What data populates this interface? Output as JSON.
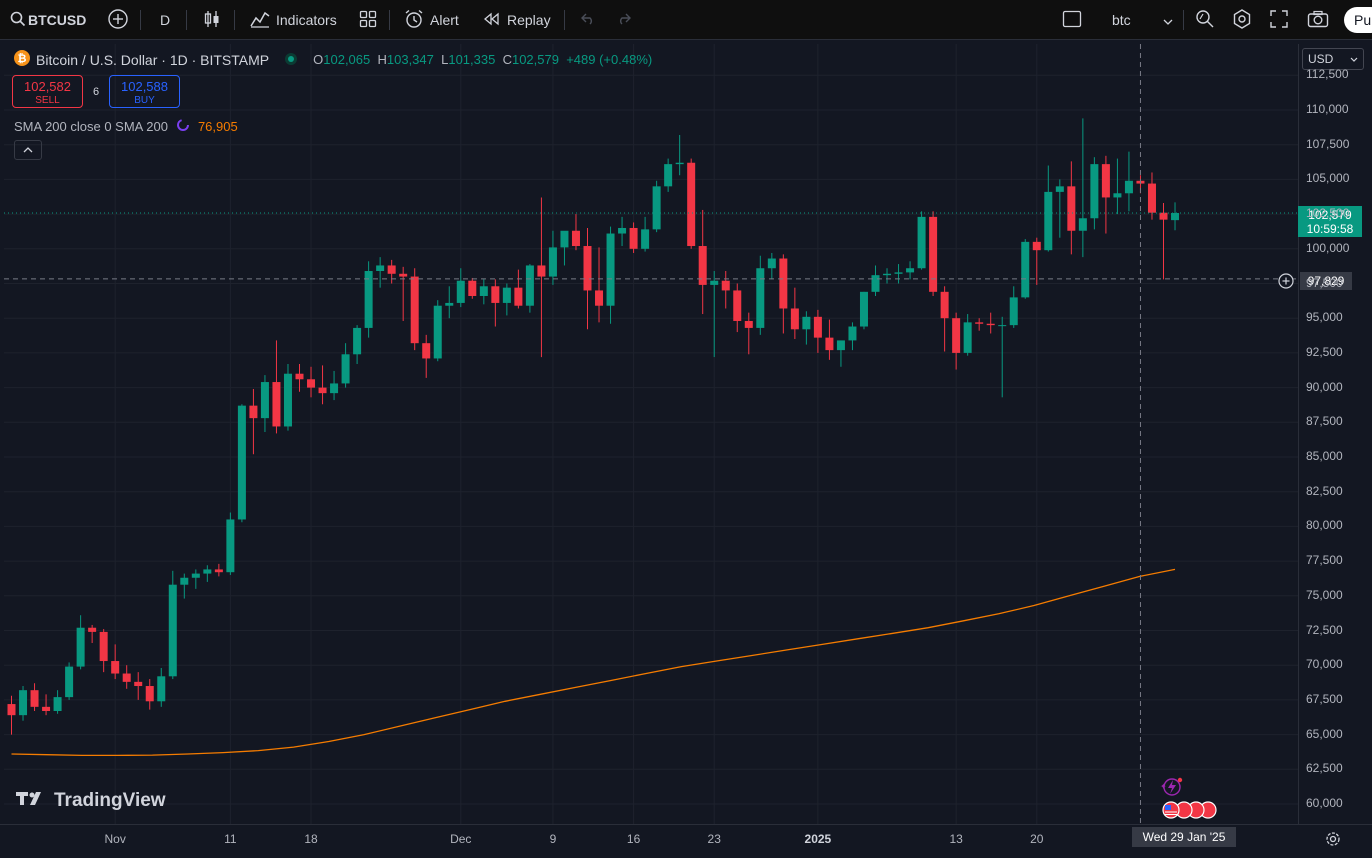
{
  "toolbar": {
    "symbol": "BTCUSD",
    "interval": "D",
    "indicators_label": "Indicators",
    "alert_label": "Alert",
    "replay_label": "Replay",
    "layout_name": "btc",
    "publish_label": "Pu"
  },
  "legend": {
    "title": "Bitcoin / U.S. Dollar · 1D · BITSTAMP",
    "o_key": "O",
    "o_val": "102,065",
    "h_key": "H",
    "h_val": "103,347",
    "l_key": "L",
    "l_val": "101,335",
    "c_key": "C",
    "c_val": "102,579",
    "change": "+489 (+0.48%)"
  },
  "trade": {
    "sell_price": "102,582",
    "sell_label": "SELL",
    "spread": "6",
    "buy_price": "102,588",
    "buy_label": "BUY"
  },
  "sma": {
    "label": "SMA 200 close 0 SMA 200",
    "value": "76,905"
  },
  "currency": "USD",
  "last_price_tag": {
    "price": "102,579",
    "countdown": "10:59:58"
  },
  "crosshair": {
    "price": "97,829",
    "date": "Wed 29 Jan '25"
  },
  "brand": "TradingView",
  "colors": {
    "up": "#089981",
    "down": "#f23645",
    "sma": "#f57c00",
    "bg": "#131722"
  },
  "chart_data": {
    "type": "candlestick",
    "ylim": [
      59000,
      113000
    ],
    "price_ticks": [
      "112,500",
      "110,000",
      "107,500",
      "105,000",
      "102,500",
      "100,000",
      "97,500",
      "95,000",
      "92,500",
      "90,000",
      "87,500",
      "85,000",
      "82,500",
      "80,000",
      "77,500",
      "75,000",
      "72,500",
      "70,000",
      "67,500",
      "65,000",
      "62,500",
      "60,000"
    ],
    "time_ticks": [
      {
        "label": "Nov",
        "date": "2024-11-01"
      },
      {
        "label": "11",
        "date": "2024-11-11"
      },
      {
        "label": "18",
        "date": "2024-11-18"
      },
      {
        "label": "Dec",
        "date": "2024-12-01"
      },
      {
        "label": "9",
        "date": "2024-12-09"
      },
      {
        "label": "16",
        "date": "2024-12-16"
      },
      {
        "label": "23",
        "date": "2024-12-23"
      },
      {
        "label": "2025",
        "date": "2025-01-01"
      },
      {
        "label": "13",
        "date": "2025-01-13"
      },
      {
        "label": "20",
        "date": "2025-01-20"
      }
    ],
    "candles": [
      {
        "o": 67200,
        "h": 67800,
        "l": 65000,
        "c": 66400
      },
      {
        "o": 66400,
        "h": 68500,
        "l": 66000,
        "c": 68200
      },
      {
        "o": 68200,
        "h": 68700,
        "l": 66700,
        "c": 67000
      },
      {
        "o": 67000,
        "h": 67900,
        "l": 66400,
        "c": 66700
      },
      {
        "o": 66700,
        "h": 68200,
        "l": 66500,
        "c": 67700
      },
      {
        "o": 67700,
        "h": 70200,
        "l": 67500,
        "c": 69900
      },
      {
        "o": 69900,
        "h": 73600,
        "l": 69700,
        "c": 72700
      },
      {
        "o": 72700,
        "h": 72900,
        "l": 71600,
        "c": 72400
      },
      {
        "o": 72400,
        "h": 72600,
        "l": 69500,
        "c": 70300
      },
      {
        "o": 70300,
        "h": 71500,
        "l": 69000,
        "c": 69400
      },
      {
        "o": 69400,
        "h": 70000,
        "l": 68300,
        "c": 68800
      },
      {
        "o": 68800,
        "h": 69500,
        "l": 67500,
        "c": 68500
      },
      {
        "o": 68500,
        "h": 69000,
        "l": 66800,
        "c": 67400
      },
      {
        "o": 67400,
        "h": 69800,
        "l": 67000,
        "c": 69200
      },
      {
        "o": 69200,
        "h": 76800,
        "l": 69000,
        "c": 75800
      },
      {
        "o": 75800,
        "h": 76600,
        "l": 74800,
        "c": 76300
      },
      {
        "o": 76300,
        "h": 76900,
        "l": 75500,
        "c": 76600
      },
      {
        "o": 76600,
        "h": 77200,
        "l": 76000,
        "c": 76900
      },
      {
        "o": 76900,
        "h": 77300,
        "l": 76400,
        "c": 76700
      },
      {
        "o": 76700,
        "h": 81000,
        "l": 76500,
        "c": 80500
      },
      {
        "o": 80500,
        "h": 88800,
        "l": 80300,
        "c": 88700
      },
      {
        "o": 88700,
        "h": 89900,
        "l": 85200,
        "c": 87800
      },
      {
        "o": 87800,
        "h": 90900,
        "l": 86800,
        "c": 90400
      },
      {
        "o": 90400,
        "h": 93400,
        "l": 86700,
        "c": 87200
      },
      {
        "o": 87200,
        "h": 91700,
        "l": 86900,
        "c": 91000
      },
      {
        "o": 91000,
        "h": 91700,
        "l": 89700,
        "c": 90600
      },
      {
        "o": 90600,
        "h": 91500,
        "l": 89300,
        "c": 90000
      },
      {
        "o": 90000,
        "h": 91600,
        "l": 88800,
        "c": 89600
      },
      {
        "o": 89600,
        "h": 91200,
        "l": 89100,
        "c": 90300
      },
      {
        "o": 90300,
        "h": 93200,
        "l": 90000,
        "c": 92400
      },
      {
        "o": 92400,
        "h": 94500,
        "l": 91700,
        "c": 94300
      },
      {
        "o": 94300,
        "h": 99100,
        "l": 93600,
        "c": 98400
      },
      {
        "o": 98400,
        "h": 99400,
        "l": 97200,
        "c": 98800
      },
      {
        "o": 98800,
        "h": 99200,
        "l": 97500,
        "c": 98200
      },
      {
        "o": 98200,
        "h": 98700,
        "l": 94800,
        "c": 98000
      },
      {
        "o": 98000,
        "h": 98600,
        "l": 92700,
        "c": 93200
      },
      {
        "o": 93200,
        "h": 93800,
        "l": 90700,
        "c": 92100
      },
      {
        "o": 92100,
        "h": 96300,
        "l": 91900,
        "c": 95900
      },
      {
        "o": 95900,
        "h": 97300,
        "l": 95000,
        "c": 96100
      },
      {
        "o": 96100,
        "h": 98600,
        "l": 95800,
        "c": 97700
      },
      {
        "o": 97700,
        "h": 97900,
        "l": 96400,
        "c": 96600
      },
      {
        "o": 96600,
        "h": 97800,
        "l": 96000,
        "c": 97300
      },
      {
        "o": 97300,
        "h": 97800,
        "l": 94400,
        "c": 96100
      },
      {
        "o": 96100,
        "h": 97500,
        "l": 95200,
        "c": 97200
      },
      {
        "o": 97200,
        "h": 98500,
        "l": 95700,
        "c": 95900
      },
      {
        "o": 95900,
        "h": 98900,
        "l": 95400,
        "c": 98800
      },
      {
        "o": 98800,
        "h": 103700,
        "l": 92200,
        "c": 98000
      },
      {
        "o": 98000,
        "h": 101300,
        "l": 97400,
        "c": 100100
      },
      {
        "o": 100100,
        "h": 101000,
        "l": 98800,
        "c": 101300
      },
      {
        "o": 101300,
        "h": 102500,
        "l": 99900,
        "c": 100200
      },
      {
        "o": 100200,
        "h": 101500,
        "l": 94200,
        "c": 97000
      },
      {
        "o": 97000,
        "h": 100100,
        "l": 94700,
        "c": 95900
      },
      {
        "o": 95900,
        "h": 101600,
        "l": 94600,
        "c": 101100
      },
      {
        "o": 101100,
        "h": 102300,
        "l": 100200,
        "c": 101500
      },
      {
        "o": 101500,
        "h": 101900,
        "l": 99700,
        "c": 100000
      },
      {
        "o": 100000,
        "h": 102300,
        "l": 99800,
        "c": 101400
      },
      {
        "o": 101400,
        "h": 104900,
        "l": 101200,
        "c": 104500
      },
      {
        "o": 104500,
        "h": 106500,
        "l": 104100,
        "c": 106100
      },
      {
        "o": 106100,
        "h": 108200,
        "l": 105300,
        "c": 106200
      },
      {
        "o": 106200,
        "h": 106500,
        "l": 100000,
        "c": 100200
      },
      {
        "o": 100200,
        "h": 102800,
        "l": 95300,
        "c": 97400
      },
      {
        "o": 97400,
        "h": 98400,
        "l": 92200,
        "c": 97700
      },
      {
        "o": 97700,
        "h": 98400,
        "l": 95700,
        "c": 97000
      },
      {
        "o": 97000,
        "h": 97500,
        "l": 94000,
        "c": 94800
      },
      {
        "o": 94800,
        "h": 95400,
        "l": 92400,
        "c": 94300
      },
      {
        "o": 94300,
        "h": 99500,
        "l": 93800,
        "c": 98600
      },
      {
        "o": 98600,
        "h": 99700,
        "l": 97800,
        "c": 99300
      },
      {
        "o": 99300,
        "h": 99600,
        "l": 93900,
        "c": 95700
      },
      {
        "o": 95700,
        "h": 97200,
        "l": 93500,
        "c": 94200
      },
      {
        "o": 94200,
        "h": 95500,
        "l": 93100,
        "c": 95100
      },
      {
        "o": 95100,
        "h": 95600,
        "l": 92500,
        "c": 93600
      },
      {
        "o": 93600,
        "h": 94900,
        "l": 92000,
        "c": 92700
      },
      {
        "o": 92700,
        "h": 93300,
        "l": 91500,
        "c": 93400
      },
      {
        "o": 93400,
        "h": 94700,
        "l": 92700,
        "c": 94400
      },
      {
        "o": 94400,
        "h": 96900,
        "l": 94200,
        "c": 96900
      },
      {
        "o": 96900,
        "h": 98800,
        "l": 96600,
        "c": 98100
      },
      {
        "o": 98100,
        "h": 98600,
        "l": 97500,
        "c": 98200
      },
      {
        "o": 98200,
        "h": 98900,
        "l": 97500,
        "c": 98300
      },
      {
        "o": 98300,
        "h": 99100,
        "l": 97800,
        "c": 98600
      },
      {
        "o": 98600,
        "h": 102700,
        "l": 98500,
        "c": 102300
      },
      {
        "o": 102300,
        "h": 102700,
        "l": 96600,
        "c": 96900
      },
      {
        "o": 96900,
        "h": 97300,
        "l": 92600,
        "c": 95000
      },
      {
        "o": 95000,
        "h": 95400,
        "l": 91300,
        "c": 92500
      },
      {
        "o": 92500,
        "h": 95300,
        "l": 92300,
        "c": 94700
      },
      {
        "o": 94700,
        "h": 95000,
        "l": 94100,
        "c": 94600
      },
      {
        "o": 94600,
        "h": 95400,
        "l": 93900,
        "c": 94500
      },
      {
        "o": 94500,
        "h": 95100,
        "l": 89300,
        "c": 94500
      },
      {
        "o": 94500,
        "h": 97300,
        "l": 94300,
        "c": 96500
      },
      {
        "o": 96500,
        "h": 100700,
        "l": 96400,
        "c": 100500
      },
      {
        "o": 100500,
        "h": 100800,
        "l": 97400,
        "c": 99900
      },
      {
        "o": 99900,
        "h": 106000,
        "l": 99800,
        "c": 104100
      },
      {
        "o": 104100,
        "h": 105000,
        "l": 100800,
        "c": 104500
      },
      {
        "o": 104500,
        "h": 106300,
        "l": 99600,
        "c": 101300
      },
      {
        "o": 101300,
        "h": 109400,
        "l": 99400,
        "c": 102200
      },
      {
        "o": 102200,
        "h": 106600,
        "l": 101400,
        "c": 106100
      },
      {
        "o": 106100,
        "h": 106700,
        "l": 101100,
        "c": 103700
      },
      {
        "o": 103700,
        "h": 106500,
        "l": 102500,
        "c": 104000
      },
      {
        "o": 104000,
        "h": 107000,
        "l": 102700,
        "c": 104900
      },
      {
        "o": 104900,
        "h": 105300,
        "l": 104000,
        "c": 104700
      },
      {
        "o": 104700,
        "h": 105500,
        "l": 102100,
        "c": 102600
      },
      {
        "o": 102600,
        "h": 103300,
        "l": 97800,
        "c": 102100
      },
      {
        "o": 102065,
        "h": 103347,
        "l": 101335,
        "c": 102579
      }
    ],
    "sma_200": [
      63600,
      63550,
      63500,
      63500,
      63520,
      63600,
      63700,
      63850,
      64100,
      64500,
      65000,
      65600,
      66200,
      66800,
      67400,
      67900,
      68400,
      68900,
      69400,
      69900,
      70300,
      70700,
      71100,
      71500,
      71900,
      72300,
      72700,
      73200,
      73700,
      74300,
      75000,
      75700,
      76400,
      76905
    ],
    "last_price": 102579,
    "crosshair_price": 97829
  }
}
